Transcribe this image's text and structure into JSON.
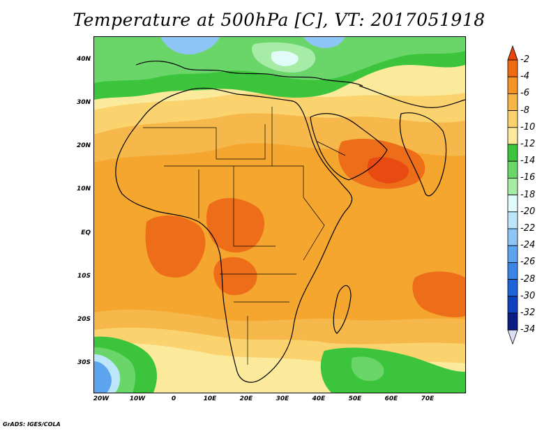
{
  "title": "Temperature at 500hPa [C], VT: 2017051918",
  "footer": "GrADS: IGES/COLA",
  "y_ticks": [
    "40N",
    "30N",
    "20N",
    "10N",
    "EQ",
    "10S",
    "20S",
    "30S"
  ],
  "x_ticks": [
    "20W",
    "10W",
    "0",
    "10E",
    "20E",
    "30E",
    "40E",
    "50E",
    "60E",
    "70E"
  ],
  "colorbar": {
    "labels": [
      "-2",
      "-4",
      "-6",
      "-8",
      "-10",
      "-12",
      "-14",
      "-16",
      "-18",
      "-20",
      "-22",
      "-24",
      "-26",
      "-28",
      "-30",
      "-32",
      "-34"
    ],
    "colors": [
      "#e8460a",
      "#f06a10",
      "#f39424",
      "#f6b646",
      "#fad36e",
      "#fbea9c",
      "#3cc43c",
      "#6ad66a",
      "#a6eca6",
      "#e0fbf8",
      "#bde6fa",
      "#8dc6f5",
      "#5ca5ee",
      "#3a85e6",
      "#1e63d8",
      "#0e40bf",
      "#0a1d87",
      "#0a0a60"
    ]
  },
  "colors": {
    "base": "#f4a62f",
    "dark_orange": "#ee6d18",
    "red": "#e84a12",
    "light_orange": "#f6b84a",
    "yellow": "#fad36e",
    "cream": "#fbea9c",
    "green": "#3cc43c",
    "light_green": "#6ad66a",
    "pale_green": "#a6eca6",
    "light_blue": "#bde6fa",
    "blue": "#5ca5ee"
  }
}
